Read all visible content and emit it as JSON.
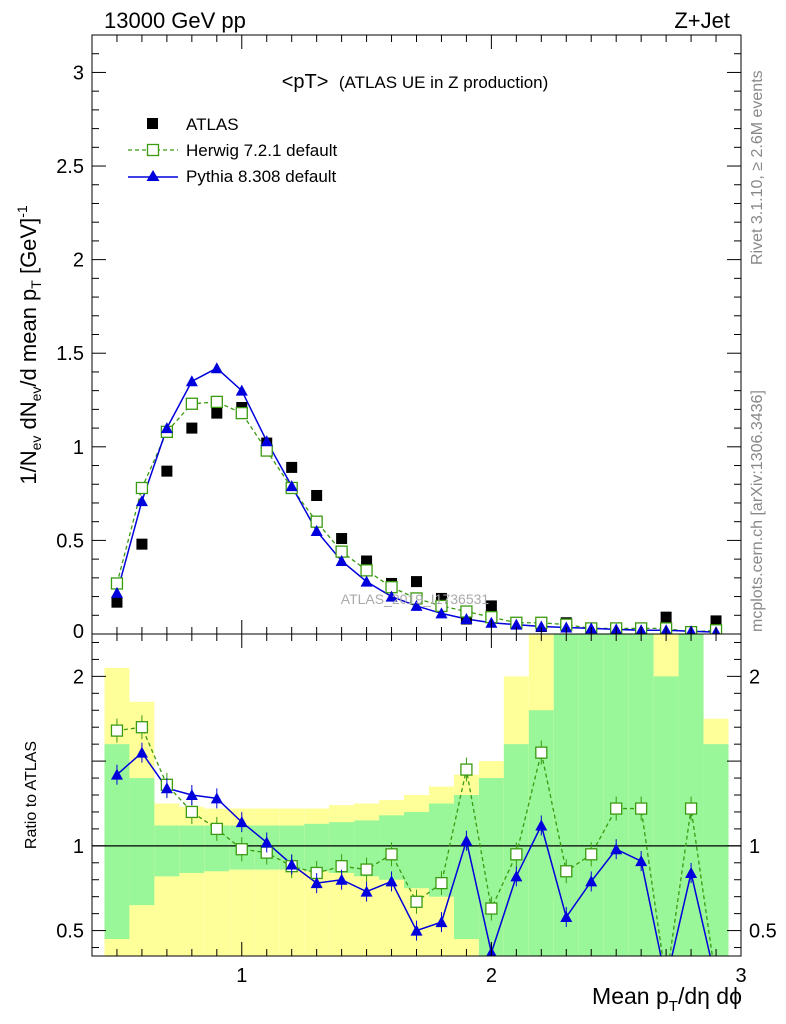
{
  "header": {
    "left": "13000 GeV pp",
    "right": "Z+Jet"
  },
  "side_labels": {
    "rivet": "Rivet 3.1.10, ≥ 2.6M events",
    "mcplots": "mcplots.cern.ch [arXiv:1306.3436]"
  },
  "watermark": "ATLAS_2019_I1736531",
  "colors": {
    "atlas": "#000000",
    "herwig": "#3a9a10",
    "pythia": "#0000dd",
    "band_inner": "#99f799",
    "band_outer": "#ffff99"
  },
  "chart_data": [
    {
      "type": "scatter",
      "title": "<pT>",
      "title_suffix": "(ATLAS UE in Z production)",
      "xlabel": "Mean p_T/dη dϕ",
      "ylabel": "1/N_ev dN_ev/d mean p_T [GeV]^-1",
      "xlim": [
        0.4,
        3.0
      ],
      "ylim": [
        0,
        3.2
      ],
      "y_ticks": [
        {
          "v": 0.5,
          "label": "0.5"
        },
        {
          "v": 1,
          "label": "1"
        },
        {
          "v": 1.5,
          "label": "1.5"
        },
        {
          "v": 2,
          "label": "2"
        },
        {
          "v": 2.5,
          "label": "2.5"
        },
        {
          "v": 3,
          "label": "3"
        }
      ],
      "legend_position": "top-left",
      "x": [
        0.5,
        0.6,
        0.7,
        0.8,
        0.9,
        1.0,
        1.1,
        1.2,
        1.3,
        1.4,
        1.5,
        1.6,
        1.7,
        1.8,
        1.9,
        2.0,
        2.1,
        2.2,
        2.3,
        2.4,
        2.5,
        2.6,
        2.7,
        2.8,
        2.9
      ],
      "series": [
        {
          "name": "ATLAS",
          "style": "data",
          "values": [
            0.17,
            0.48,
            0.87,
            1.1,
            1.18,
            1.21,
            1.02,
            0.89,
            0.74,
            0.51,
            0.39,
            0.27,
            0.28,
            0.19,
            0.08,
            0.15,
            0.06,
            0.04,
            0.06,
            0.03,
            0.02,
            0.02,
            0.09,
            0.01,
            0.07
          ]
        },
        {
          "name": "Herwig 7.2.1 default",
          "style": "herwig",
          "values": [
            0.27,
            0.78,
            1.08,
            1.23,
            1.24,
            1.18,
            0.98,
            0.78,
            0.6,
            0.44,
            0.34,
            0.25,
            0.19,
            0.15,
            0.12,
            0.09,
            0.06,
            0.06,
            0.05,
            0.03,
            0.03,
            0.03,
            0.03,
            0.01,
            0.02
          ]
        },
        {
          "name": "Pythia 8.308 default",
          "style": "pythia",
          "values": [
            0.22,
            0.71,
            1.1,
            1.35,
            1.42,
            1.3,
            1.03,
            0.79,
            0.55,
            0.39,
            0.28,
            0.2,
            0.15,
            0.11,
            0.08,
            0.06,
            0.05,
            0.04,
            0.035,
            0.03,
            0.025,
            0.02,
            0.02,
            0.015,
            0.01
          ]
        }
      ]
    },
    {
      "type": "line",
      "ylabel": "Ratio to ATLAS",
      "xlim": [
        0.4,
        3.0
      ],
      "ylim": [
        0.35,
        2.25
      ],
      "x_ticks": [
        {
          "v": 1,
          "label": "1"
        },
        {
          "v": 2,
          "label": "2"
        },
        {
          "v": 3,
          "label": "3"
        }
      ],
      "y_ticks": [
        {
          "v": 0.5,
          "label": "0.5"
        },
        {
          "v": 1,
          "label": "1"
        },
        {
          "v": 2,
          "label": "2"
        }
      ],
      "reference": 1,
      "x": [
        0.5,
        0.6,
        0.7,
        0.8,
        0.9,
        1.0,
        1.1,
        1.2,
        1.3,
        1.4,
        1.5,
        1.6,
        1.7,
        1.8,
        1.9,
        2.0,
        2.1,
        2.2,
        2.3,
        2.4,
        2.5,
        2.6,
        2.7,
        2.8,
        2.9
      ],
      "bands": {
        "inner_lo": [
          0.45,
          0.65,
          0.82,
          0.84,
          0.85,
          0.86,
          0.86,
          0.86,
          0.85,
          0.84,
          0.82,
          0.8,
          0.75,
          0.7,
          0.45,
          0.35,
          0.35,
          0.35,
          0.35,
          0.35,
          0.35,
          0.35,
          0.35,
          0.35,
          0.35
        ],
        "inner_hi": [
          1.6,
          1.4,
          1.12,
          1.12,
          1.12,
          1.12,
          1.12,
          1.12,
          1.13,
          1.14,
          1.15,
          1.18,
          1.2,
          1.25,
          1.3,
          1.4,
          1.6,
          1.8,
          2.25,
          2.25,
          2.25,
          2.25,
          2.0,
          2.25,
          1.6
        ],
        "outer_lo": [
          0.35,
          0.35,
          0.35,
          0.35,
          0.35,
          0.35,
          0.35,
          0.35,
          0.35,
          0.35,
          0.35,
          0.35,
          0.35,
          0.35,
          0.35,
          0.35,
          0.35,
          0.35,
          0.35,
          0.35,
          0.35,
          0.35,
          0.35,
          0.35,
          0.35
        ],
        "outer_hi": [
          2.05,
          1.85,
          1.25,
          1.23,
          1.22,
          1.22,
          1.22,
          1.22,
          1.22,
          1.24,
          1.25,
          1.27,
          1.3,
          1.35,
          1.42,
          1.5,
          2.0,
          2.25,
          2.25,
          2.25,
          2.25,
          2.25,
          2.25,
          2.25,
          1.75
        ]
      },
      "series": [
        {
          "name": "Herwig 7.2.1 default",
          "style": "herwig",
          "values": [
            1.68,
            1.7,
            1.36,
            1.2,
            1.1,
            0.98,
            0.96,
            0.88,
            0.84,
            0.88,
            0.86,
            0.95,
            0.67,
            0.78,
            1.45,
            0.63,
            0.95,
            1.55,
            0.85,
            0.95,
            1.22,
            1.22,
            0.2,
            1.22,
            0.2
          ]
        },
        {
          "name": "Pythia 8.308 default",
          "style": "pythia",
          "values": [
            1.42,
            1.55,
            1.34,
            1.3,
            1.28,
            1.14,
            1.02,
            0.89,
            0.78,
            0.8,
            0.73,
            0.79,
            0.5,
            0.55,
            1.03,
            0.37,
            0.82,
            1.12,
            0.58,
            0.79,
            0.98,
            0.91,
            0.2,
            0.84,
            0.2
          ]
        }
      ]
    }
  ]
}
